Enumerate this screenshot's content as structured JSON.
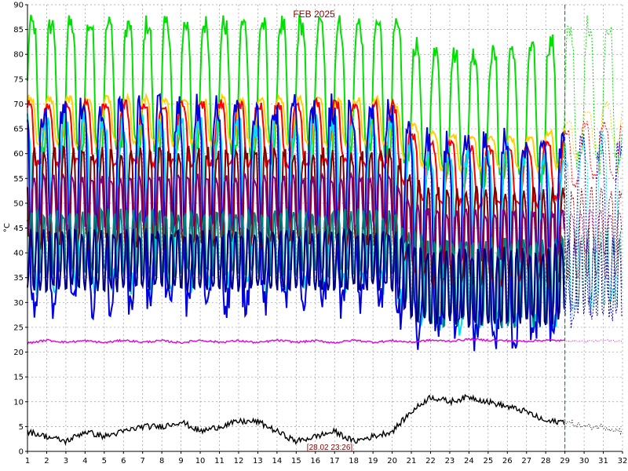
{
  "chart_data": {
    "type": "line",
    "title": "FEB 2025",
    "ylabel": "°C",
    "xlim": [
      1,
      32
    ],
    "ylim": [
      0,
      90
    ],
    "x_ticks": [
      "1",
      "2",
      "3",
      "4",
      "5",
      "6",
      "7",
      "8",
      "9",
      "10",
      "11",
      "12",
      "13",
      "14",
      "15",
      "16",
      "17",
      "18",
      "19",
      "20",
      "21",
      "22",
      "23",
      "24",
      "25",
      "26",
      "27",
      "28",
      "29",
      "30",
      "31",
      "32"
    ],
    "y_ticks": [
      "0",
      "5",
      "10",
      "15",
      "20",
      "25",
      "30",
      "35",
      "40",
      "45",
      "50",
      "55",
      "60",
      "65",
      "70",
      "75",
      "80",
      "85",
      "90"
    ],
    "grid": true,
    "cursor": {
      "x": 29.0,
      "label": "[28.02 23:26]"
    },
    "series": [
      {
        "color": "#00e000",
        "period": 1,
        "high": [
          86,
          86,
          86,
          86,
          86,
          86,
          86,
          86,
          86,
          86,
          86,
          86,
          86,
          86,
          86,
          86,
          86,
          86,
          86,
          86,
          82,
          80,
          80,
          80,
          80,
          80,
          80,
          82,
          84,
          86,
          86,
          86
        ],
        "low": [
          62,
          60,
          60,
          60,
          60,
          60,
          60,
          60,
          60,
          60,
          60,
          60,
          60,
          60,
          60,
          60,
          60,
          60,
          60,
          60,
          58,
          56,
          56,
          55,
          55,
          55,
          55,
          56,
          58,
          58,
          58,
          58
        ],
        "future_style": "dashed"
      },
      {
        "color": "#ffd000",
        "period": 1,
        "high": [
          71,
          71,
          71,
          71,
          71,
          71,
          71,
          71,
          71,
          71,
          71,
          71,
          71,
          71,
          71,
          71,
          71,
          71,
          71,
          71,
          66,
          64,
          64,
          63,
          63,
          63,
          63,
          64,
          66,
          68,
          70,
          70
        ],
        "low": [
          62,
          62,
          62,
          62,
          62,
          62,
          62,
          62,
          62,
          62,
          62,
          62,
          62,
          62,
          62,
          62,
          62,
          62,
          62,
          62,
          58,
          57,
          57,
          57,
          57,
          57,
          57,
          57,
          58,
          60,
          62,
          62
        ],
        "future_style": "dashed"
      },
      {
        "color": "#ff0000",
        "period": 1,
        "high": [
          70,
          70,
          70,
          70,
          70,
          70,
          70,
          70,
          70,
          70,
          70,
          70,
          70,
          70,
          70,
          70,
          70,
          70,
          70,
          70,
          64,
          62,
          62,
          61,
          61,
          61,
          61,
          62,
          64,
          66,
          66,
          66
        ],
        "low": [
          58,
          58,
          58,
          58,
          58,
          58,
          58,
          58,
          58,
          58,
          58,
          58,
          58,
          58,
          58,
          58,
          58,
          58,
          58,
          58,
          52,
          50,
          50,
          50,
          50,
          50,
          50,
          50,
          52,
          55,
          55,
          55
        ],
        "future_style": "dashed"
      },
      {
        "color": "#00e0f0",
        "period": 1,
        "high": [
          66,
          66,
          66,
          66,
          66,
          66,
          66,
          66,
          66,
          66,
          66,
          66,
          66,
          66,
          66,
          66,
          66,
          66,
          66,
          66,
          62,
          60,
          60,
          60,
          60,
          60,
          60,
          60,
          60,
          62,
          62,
          62
        ],
        "low": [
          34,
          34,
          34,
          34,
          34,
          34,
          34,
          34,
          34,
          34,
          34,
          34,
          34,
          34,
          34,
          34,
          34,
          34,
          34,
          34,
          26,
          26,
          26,
          26,
          26,
          26,
          26,
          26,
          28,
          30,
          30,
          30
        ],
        "future_style": "dashed"
      },
      {
        "color": "#0000e0",
        "period": 1,
        "high": [
          69,
          69,
          69,
          69,
          69,
          69,
          69,
          69,
          69,
          69,
          69,
          69,
          69,
          69,
          69,
          69,
          69,
          69,
          69,
          69,
          63,
          62,
          62,
          62,
          62,
          62,
          62,
          62,
          62,
          62,
          62,
          62
        ],
        "low": [
          30,
          30,
          30,
          30,
          30,
          30,
          30,
          30,
          30,
          30,
          30,
          30,
          30,
          30,
          30,
          30,
          30,
          30,
          30,
          30,
          23,
          23,
          23,
          23,
          23,
          23,
          23,
          23,
          27,
          28,
          28,
          28
        ],
        "future_style": "dashed"
      },
      {
        "color": "#800000",
        "period": 2,
        "high": [
          60,
          60,
          60,
          60,
          60,
          60,
          60,
          60,
          60,
          60,
          60,
          60,
          60,
          60,
          60,
          60,
          60,
          60,
          60,
          60,
          55,
          52,
          52,
          52,
          52,
          52,
          52,
          52,
          52,
          52,
          52,
          52
        ],
        "low": [
          42,
          42,
          42,
          42,
          42,
          42,
          42,
          42,
          42,
          42,
          42,
          42,
          42,
          42,
          42,
          42,
          42,
          42,
          42,
          42,
          36,
          34,
          34,
          34,
          34,
          34,
          34,
          34,
          36,
          36,
          36,
          36
        ],
        "future_style": "dashed"
      },
      {
        "color": "#800080",
        "period": 2,
        "high": [
          55,
          55,
          55,
          55,
          55,
          55,
          55,
          55,
          55,
          55,
          55,
          55,
          55,
          55,
          55,
          55,
          55,
          55,
          55,
          55,
          50,
          48,
          48,
          48,
          48,
          48,
          48,
          48,
          48,
          48,
          48,
          48
        ],
        "low": [
          45,
          45,
          45,
          45,
          45,
          45,
          45,
          45,
          45,
          45,
          45,
          45,
          45,
          45,
          45,
          45,
          45,
          45,
          45,
          45,
          40,
          38,
          38,
          38,
          38,
          38,
          38,
          38,
          40,
          40,
          40,
          40
        ],
        "future_style": "dashed"
      },
      {
        "color": "#008080",
        "period": 3,
        "high": [
          48,
          48,
          48,
          48,
          48,
          48,
          48,
          48,
          48,
          48,
          48,
          48,
          48,
          48,
          48,
          48,
          48,
          48,
          48,
          48,
          44,
          42,
          42,
          42,
          42,
          42,
          42,
          42,
          44,
          44,
          44,
          44
        ],
        "low": [
          36,
          36,
          36,
          36,
          36,
          36,
          36,
          36,
          36,
          36,
          36,
          36,
          36,
          36,
          36,
          36,
          36,
          36,
          36,
          36,
          28,
          26,
          26,
          26,
          26,
          26,
          26,
          26,
          30,
          30,
          30,
          30
        ],
        "future_style": "dashed"
      },
      {
        "color": "#000080",
        "period": 3,
        "high": [
          44,
          44,
          44,
          44,
          44,
          44,
          44,
          44,
          44,
          44,
          44,
          44,
          44,
          44,
          44,
          44,
          44,
          44,
          44,
          44,
          42,
          40,
          40,
          40,
          40,
          40,
          40,
          40,
          42,
          42,
          42,
          42
        ],
        "low": [
          33,
          33,
          33,
          33,
          33,
          33,
          33,
          33,
          33,
          33,
          33,
          33,
          33,
          33,
          33,
          33,
          33,
          33,
          33,
          33,
          27,
          26,
          26,
          26,
          26,
          26,
          26,
          26,
          28,
          28,
          28,
          28
        ],
        "future_style": "dashed"
      },
      {
        "color": "#e000e0",
        "period": 0,
        "values": [
          21.8,
          22.4,
          22.0,
          22.3,
          21.9,
          22.4,
          22.0,
          22.3,
          21.9,
          22.4,
          22.0,
          22.3,
          21.9,
          22.4,
          22.0,
          22.3,
          21.9,
          22.4,
          22.0,
          22.3,
          22.0,
          22.4,
          22.2,
          22.6,
          22.4,
          22.3,
          22.2,
          22.4,
          22.3,
          22.2,
          22.3,
          22.3
        ],
        "future_style": "dotted"
      },
      {
        "color": "#000000",
        "period": 0,
        "values": [
          4,
          3,
          2,
          4,
          3,
          4,
          5,
          5,
          6,
          4,
          5,
          6,
          6,
          4,
          2,
          3,
          4,
          2,
          3,
          4,
          8,
          11,
          10,
          11,
          10,
          9,
          8,
          6,
          6,
          5,
          5,
          4
        ],
        "future_style": "dotted"
      }
    ]
  }
}
